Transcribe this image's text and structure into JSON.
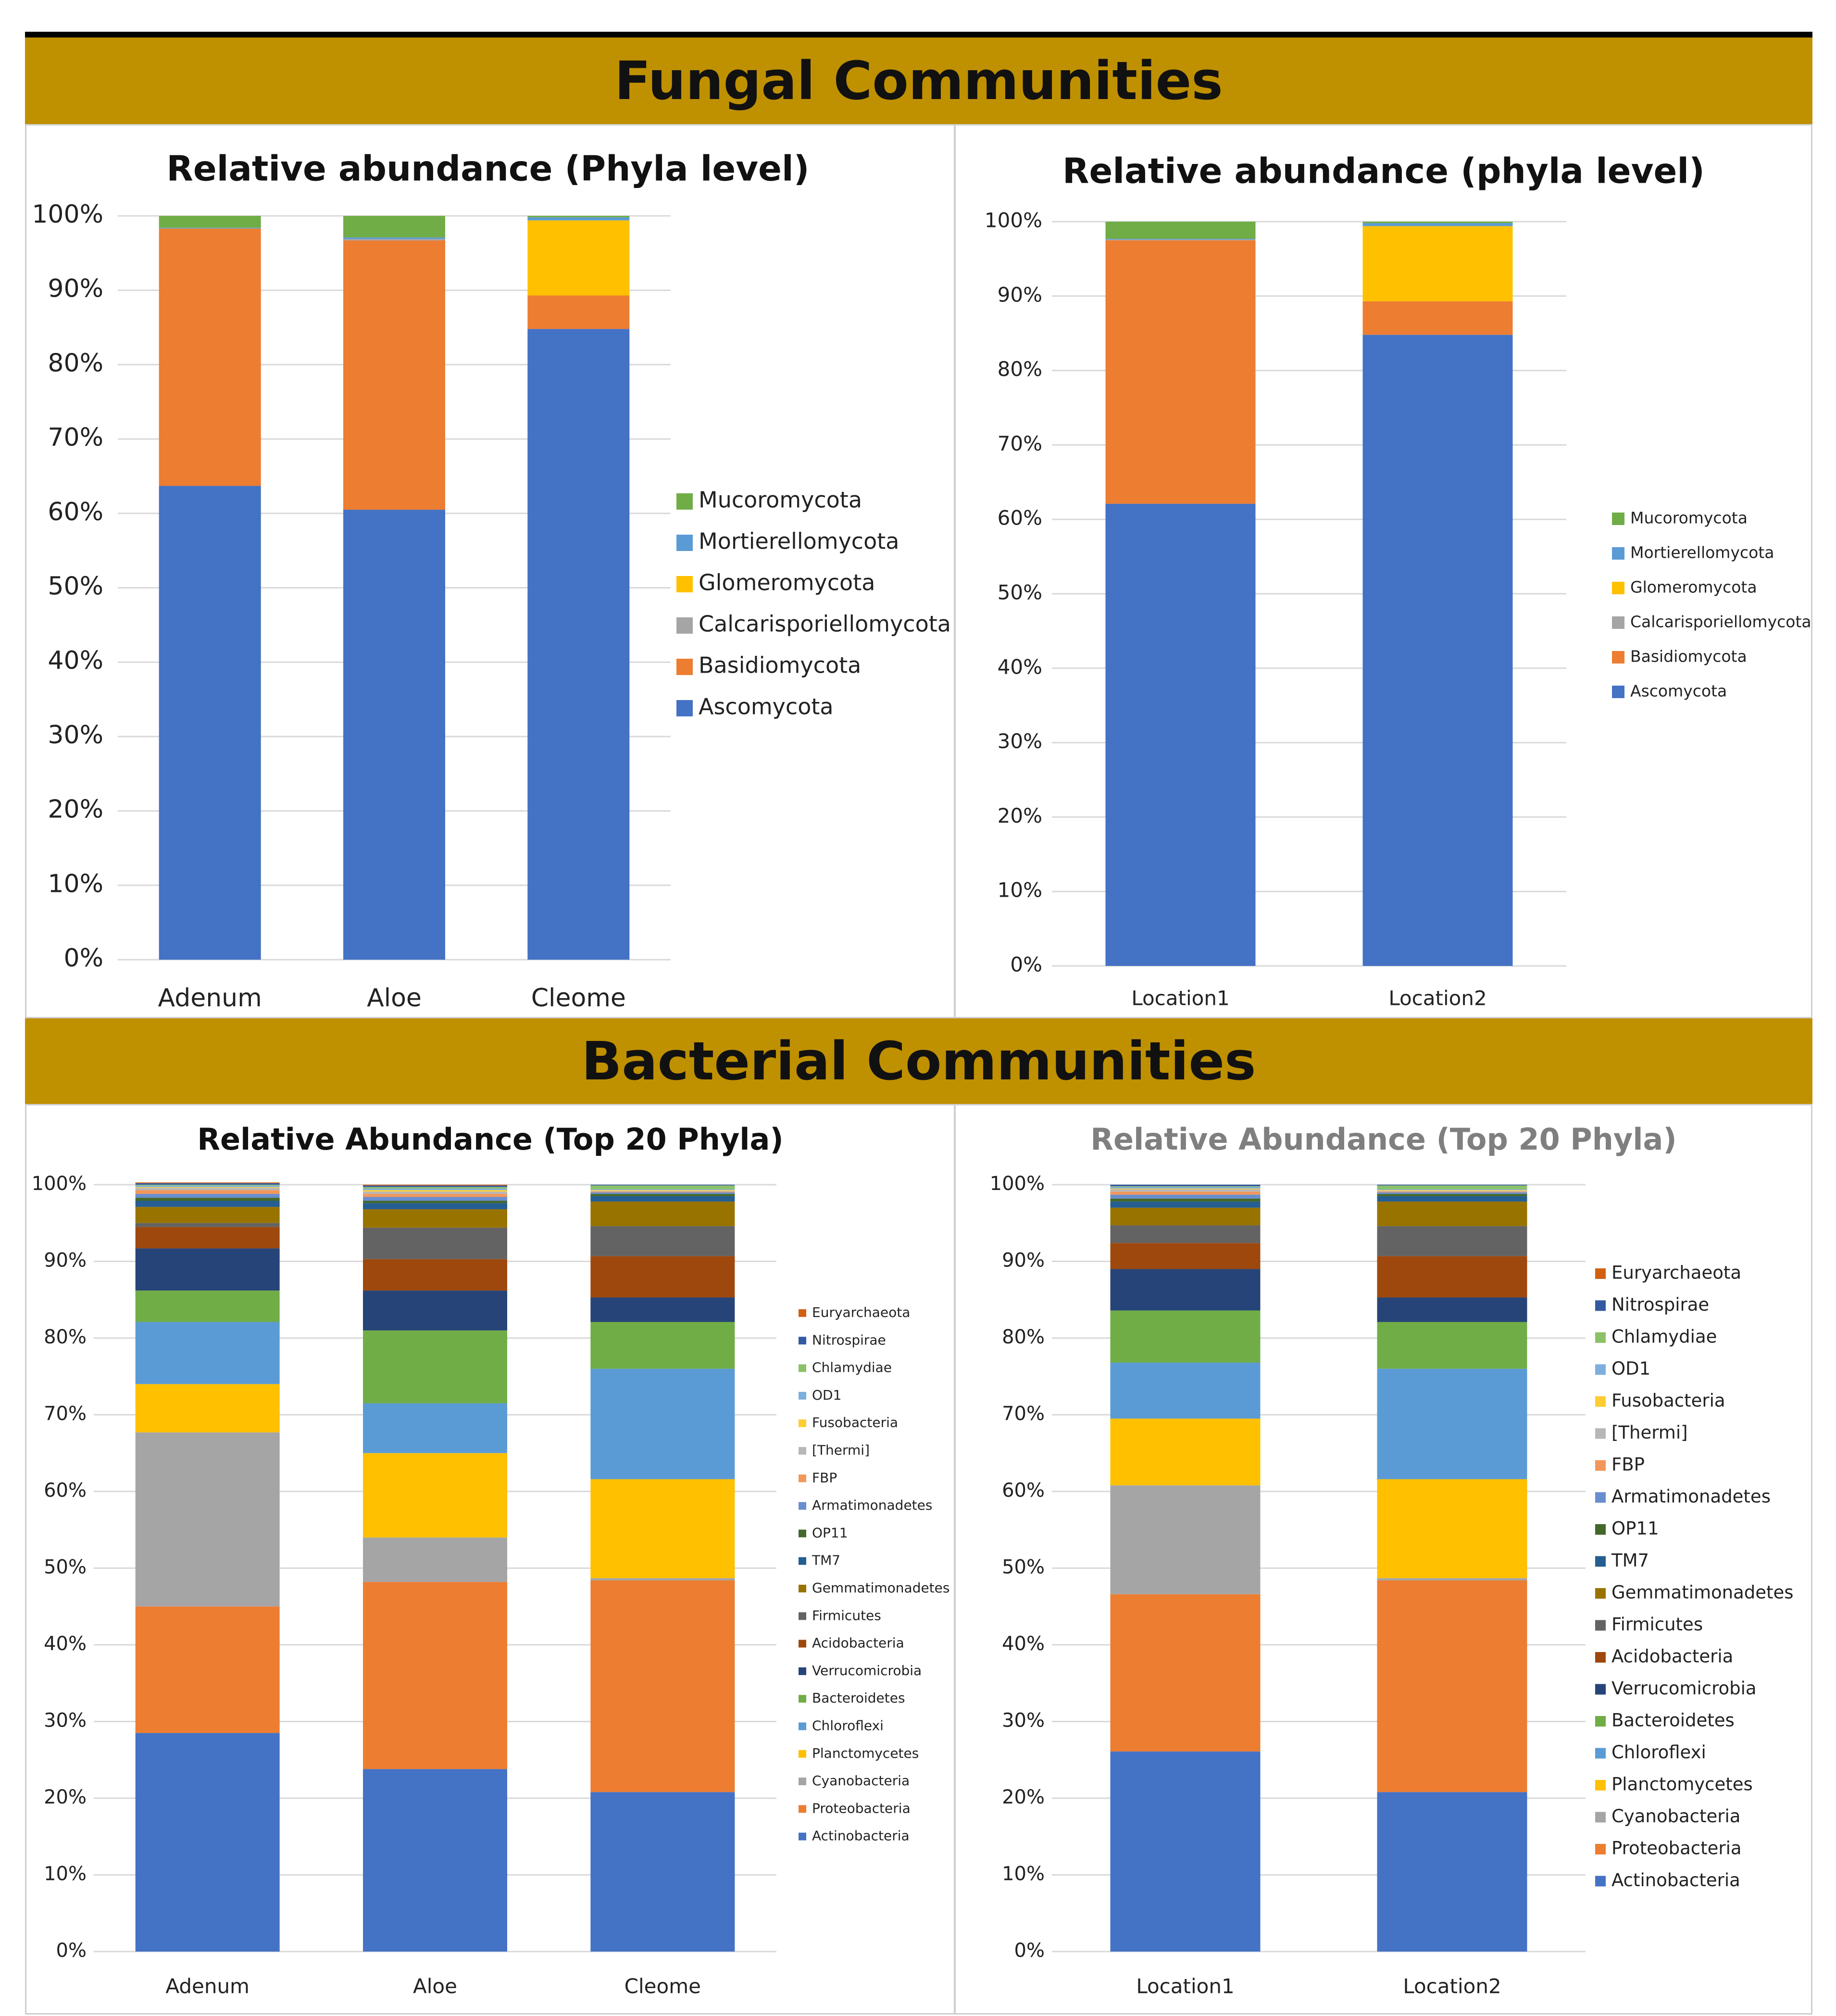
{
  "banners": {
    "fungal": "Fungal Communities",
    "bacterial": "Bacterial Communities"
  },
  "colors": {
    "banner": "#bf9000",
    "gridline": "#d9d9d9"
  },
  "chart_data": [
    {
      "id": "fungal-samples",
      "type": "bar",
      "stacked": true,
      "title": "Relative abundance (Phyla level)",
      "categories": [
        "Adenum",
        "Aloe",
        "Cleome"
      ],
      "ylim": [
        0,
        100
      ],
      "y_ticks": [
        "0%",
        "10%",
        "20%",
        "30%",
        "40%",
        "50%",
        "60%",
        "70%",
        "80%",
        "90%",
        "100%"
      ],
      "grid": true,
      "legend": "right",
      "series": [
        {
          "name": "Ascomycota",
          "color": "#4472c4",
          "values": [
            63.7,
            60.5,
            84.8
          ]
        },
        {
          "name": "Basidiomycota",
          "color": "#ed7d31",
          "values": [
            34.6,
            36.2,
            4.5
          ]
        },
        {
          "name": "Calcarisporiellomycota",
          "color": "#a5a5a5",
          "values": [
            0.0,
            0.2,
            0.0
          ]
        },
        {
          "name": "Glomeromycota",
          "color": "#ffc000",
          "values": [
            0.0,
            0.0,
            10.1
          ]
        },
        {
          "name": "Mortierellomycota",
          "color": "#5b9bd5",
          "values": [
            0.1,
            0.2,
            0.4
          ]
        },
        {
          "name": "Mucoromycota",
          "color": "#70ad47",
          "values": [
            1.6,
            2.9,
            0.2
          ]
        }
      ]
    },
    {
      "id": "fungal-locations",
      "type": "bar",
      "stacked": true,
      "title": "Relative abundance (phyla level)",
      "categories": [
        "Location1",
        "Location2"
      ],
      "ylim": [
        0,
        100
      ],
      "y_ticks": [
        "0%",
        "10%",
        "20%",
        "30%",
        "40%",
        "50%",
        "60%",
        "70%",
        "80%",
        "90%",
        "100%"
      ],
      "grid": true,
      "legend": "right",
      "series": [
        {
          "name": "Ascomycota",
          "color": "#4472c4",
          "values": [
            62.1,
            84.8
          ]
        },
        {
          "name": "Basidiomycota",
          "color": "#ed7d31",
          "values": [
            35.4,
            4.5
          ]
        },
        {
          "name": "Calcarisporiellomycota",
          "color": "#a5a5a5",
          "values": [
            0.1,
            0.0
          ]
        },
        {
          "name": "Glomeromycota",
          "color": "#ffc000",
          "values": [
            0.0,
            10.1
          ]
        },
        {
          "name": "Mortierellomycota",
          "color": "#5b9bd5",
          "values": [
            0.1,
            0.4
          ]
        },
        {
          "name": "Mucoromycota",
          "color": "#70ad47",
          "values": [
            2.3,
            0.2
          ]
        }
      ]
    },
    {
      "id": "bacterial-samples",
      "type": "bar",
      "stacked": true,
      "title": "Relative Abundance (Top 20 Phyla)",
      "categories": [
        "Adenum",
        "Aloe",
        "Cleome"
      ],
      "ylim": [
        0,
        100
      ],
      "y_ticks": [
        "0%",
        "10%",
        "20%",
        "30%",
        "40%",
        "50%",
        "60%",
        "70%",
        "80%",
        "90%",
        "100%"
      ],
      "grid": true,
      "legend": "right",
      "series": [
        {
          "name": "Actinobacteria",
          "color": "#4472c4",
          "values": [
            28.5,
            23.8,
            20.8
          ]
        },
        {
          "name": "Proteobacteria",
          "color": "#ed7d31",
          "values": [
            16.5,
            24.4,
            27.6
          ]
        },
        {
          "name": "Cyanobacteria",
          "color": "#a5a5a5",
          "values": [
            22.7,
            5.8,
            0.3
          ]
        },
        {
          "name": "Planctomycetes",
          "color": "#ffc000",
          "values": [
            6.3,
            11.0,
            12.9
          ]
        },
        {
          "name": "Chloroflexi",
          "color": "#5b9bd5",
          "values": [
            8.1,
            6.5,
            14.4
          ]
        },
        {
          "name": "Bacteroidetes",
          "color": "#70ad47",
          "values": [
            4.1,
            9.5,
            6.1
          ]
        },
        {
          "name": "Verrucomicrobia",
          "color": "#264478",
          "values": [
            5.5,
            5.2,
            3.2
          ]
        },
        {
          "name": "Acidobacteria",
          "color": "#9e480e",
          "values": [
            2.8,
            4.1,
            5.4
          ]
        },
        {
          "name": "Firmicutes",
          "color": "#636363",
          "values": [
            0.5,
            4.1,
            3.9
          ]
        },
        {
          "name": "Gemmatimonadetes",
          "color": "#997300",
          "values": [
            2.1,
            2.4,
            3.2
          ]
        },
        {
          "name": "TM7",
          "color": "#255e91",
          "values": [
            0.8,
            0.8,
            0.7
          ]
        },
        {
          "name": "OP11",
          "color": "#43682b",
          "values": [
            0.4,
            0.3,
            0.3
          ]
        },
        {
          "name": "Armatimonadetes",
          "color": "#698ed0",
          "values": [
            0.5,
            0.5,
            0.2
          ]
        },
        {
          "name": "FBP",
          "color": "#f1975a",
          "values": [
            0.5,
            0.4,
            0.1
          ]
        },
        {
          "name": "[Thermi]",
          "color": "#b7b7b7",
          "values": [
            0.3,
            0.3,
            0.1
          ]
        },
        {
          "name": "Fusobacteria",
          "color": "#ffcd33",
          "values": [
            0.1,
            0.2,
            0.1
          ]
        },
        {
          "name": "OD1",
          "color": "#7cafdd",
          "values": [
            0.2,
            0.2,
            0.1
          ]
        },
        {
          "name": "Chlamydiae",
          "color": "#8cc168",
          "values": [
            0.1,
            0.2,
            0.5
          ]
        },
        {
          "name": "Nitrospirae",
          "color": "#335aa1",
          "values": [
            0.2,
            0.2,
            0.1
          ]
        },
        {
          "name": "Euryarchaeota",
          "color": "#d26012",
          "values": [
            0.1,
            0.1,
            0.0
          ]
        }
      ]
    },
    {
      "id": "bacterial-locations",
      "type": "bar",
      "stacked": true,
      "title": "Relative Abundance (Top 20 Phyla)",
      "categories": [
        "Location1",
        "Location2"
      ],
      "ylim": [
        0,
        100
      ],
      "y_ticks": [
        "0%",
        "10%",
        "20%",
        "30%",
        "40%",
        "50%",
        "60%",
        "70%",
        "80%",
        "90%",
        "100%"
      ],
      "grid": true,
      "legend": "right",
      "series": [
        {
          "name": "Actinobacteria",
          "color": "#4472c4",
          "values": [
            26.1,
            20.8
          ]
        },
        {
          "name": "Proteobacteria",
          "color": "#ed7d31",
          "values": [
            20.5,
            27.6
          ]
        },
        {
          "name": "Cyanobacteria",
          "color": "#a5a5a5",
          "values": [
            14.2,
            0.3
          ]
        },
        {
          "name": "Planctomycetes",
          "color": "#ffc000",
          "values": [
            8.7,
            12.9
          ]
        },
        {
          "name": "Chloroflexi",
          "color": "#5b9bd5",
          "values": [
            7.3,
            14.4
          ]
        },
        {
          "name": "Bacteroidetes",
          "color": "#70ad47",
          "values": [
            6.8,
            6.1
          ]
        },
        {
          "name": "Verrucomicrobia",
          "color": "#264478",
          "values": [
            5.4,
            3.2
          ]
        },
        {
          "name": "Acidobacteria",
          "color": "#9e480e",
          "values": [
            3.4,
            5.4
          ]
        },
        {
          "name": "Firmicutes",
          "color": "#636363",
          "values": [
            2.3,
            3.9
          ]
        },
        {
          "name": "Gemmatimonadetes",
          "color": "#997300",
          "values": [
            2.3,
            3.2
          ]
        },
        {
          "name": "TM7",
          "color": "#255e91",
          "values": [
            0.8,
            0.7
          ]
        },
        {
          "name": "OP11",
          "color": "#43682b",
          "values": [
            0.4,
            0.3
          ]
        },
        {
          "name": "Armatimonadetes",
          "color": "#698ed0",
          "values": [
            0.5,
            0.2
          ]
        },
        {
          "name": "FBP",
          "color": "#f1975a",
          "values": [
            0.4,
            0.1
          ]
        },
        {
          "name": "[Thermi]",
          "color": "#b7b7b7",
          "values": [
            0.3,
            0.1
          ]
        },
        {
          "name": "Fusobacteria",
          "color": "#ffcd33",
          "values": [
            0.1,
            0.1
          ]
        },
        {
          "name": "OD1",
          "color": "#7cafdd",
          "values": [
            0.2,
            0.1
          ]
        },
        {
          "name": "Chlamydiae",
          "color": "#8cc168",
          "values": [
            0.1,
            0.5
          ]
        },
        {
          "name": "Nitrospirae",
          "color": "#335aa1",
          "values": [
            0.2,
            0.1
          ]
        },
        {
          "name": "Euryarchaeota",
          "color": "#d26012",
          "values": [
            0.0,
            0.0
          ]
        }
      ]
    }
  ]
}
